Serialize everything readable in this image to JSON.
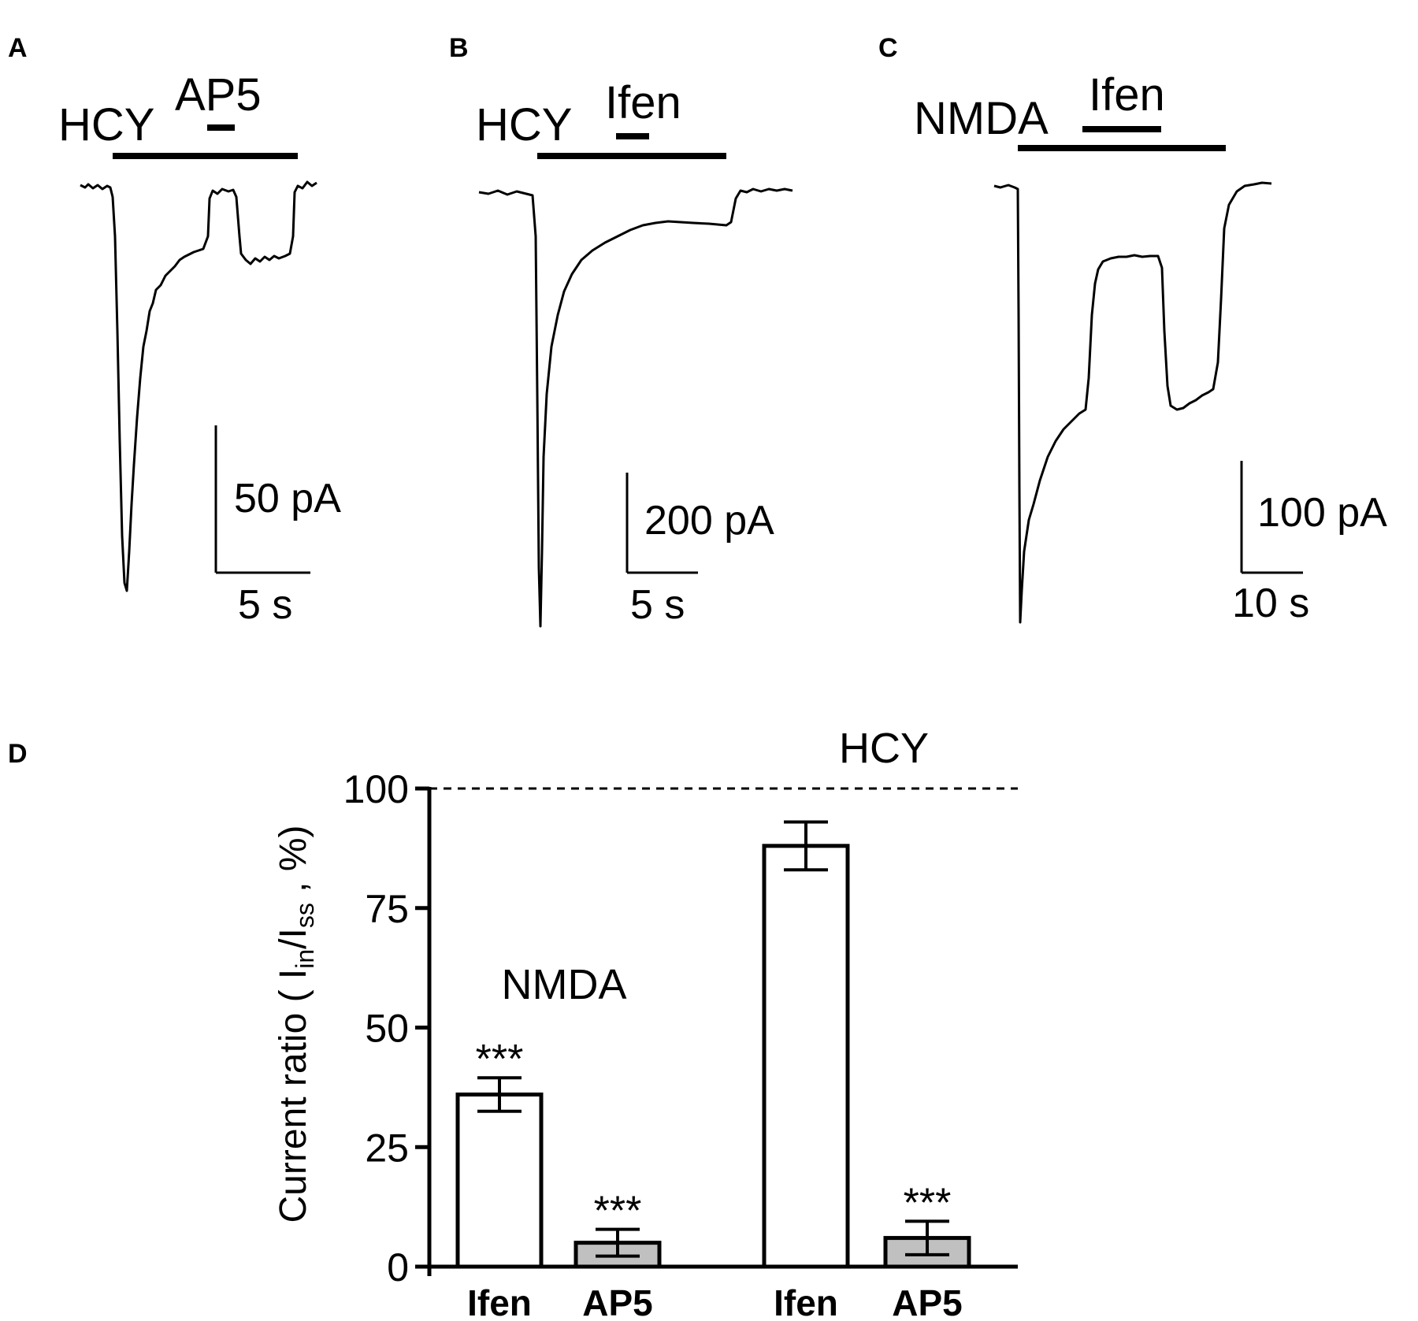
{
  "panels": {
    "A": {
      "letter": "A",
      "agonist_label": "HCY",
      "drug_label": "AP5",
      "scale_y_label": "50 pA",
      "scale_x_label": "5 s"
    },
    "B": {
      "letter": "B",
      "agonist_label": "HCY",
      "drug_label": "Ifen",
      "scale_y_label": "200 pA",
      "scale_x_label": "5 s"
    },
    "C": {
      "letter": "C",
      "agonist_label": "NMDA",
      "drug_label": "Ifen",
      "scale_y_label": "100 pA",
      "scale_x_label": "10 s"
    },
    "D": {
      "letter": "D"
    }
  },
  "chart_data": {
    "type": "bar",
    "ylabel": "Current ratio ( Iin/Iss , %)",
    "ylabel_parts": {
      "prefix": "Current ratio ( I",
      "sub1": "in",
      "mid": "/I",
      "sub2": "ss",
      "suffix": " , %)"
    },
    "ylim": [
      0,
      100
    ],
    "yticks": [
      "0",
      "25",
      "50",
      "75",
      "100"
    ],
    "reference_line": {
      "value": 100,
      "style": "dashed"
    },
    "groups": [
      {
        "label": "NMDA",
        "bars": [
          {
            "category": "Ifen",
            "value": 36,
            "error": 3.5,
            "fill": "#ffffff",
            "significance": "***"
          },
          {
            "category": "AP5",
            "value": 5,
            "error": 2.8,
            "fill": "#c0c0c0",
            "significance": "***"
          }
        ]
      },
      {
        "label": "HCY",
        "bars": [
          {
            "category": "Ifen",
            "value": 88,
            "error": 5,
            "fill": "#ffffff",
            "significance": ""
          },
          {
            "category": "AP5",
            "value": 6,
            "error": 3.5,
            "fill": "#c0c0c0",
            "significance": "***"
          }
        ]
      }
    ]
  }
}
